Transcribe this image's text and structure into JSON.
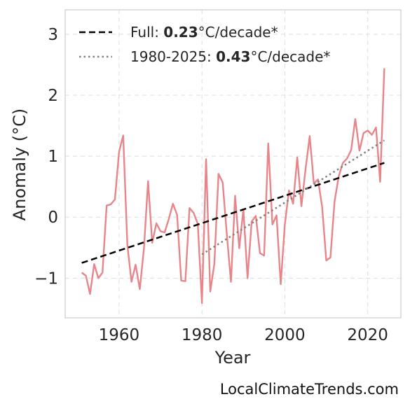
{
  "chart_data": {
    "type": "line",
    "xlabel": "Year",
    "ylabel": "Anomaly (°C)",
    "xlim": [
      1947,
      2028
    ],
    "ylim": [
      -1.65,
      3.4
    ],
    "x_ticks": [
      1960,
      1980,
      2000,
      2020
    ],
    "y_ticks": [
      {
        "value": 3,
        "label": "3"
      },
      {
        "value": 2,
        "label": "2"
      },
      {
        "value": 1,
        "label": "1"
      },
      {
        "value": 0,
        "label": "0"
      },
      {
        "value": -1,
        "label": "−1"
      }
    ],
    "grid": true,
    "legend_position": "top-left",
    "series": [
      {
        "role": "anomaly",
        "color": "#e8858a",
        "x": [
          1951,
          1952,
          1953,
          1954,
          1955,
          1956,
          1957,
          1958,
          1959,
          1960,
          1961,
          1962,
          1963,
          1964,
          1965,
          1966,
          1967,
          1968,
          1969,
          1970,
          1971,
          1972,
          1973,
          1974,
          1975,
          1976,
          1977,
          1978,
          1979,
          1980,
          1981,
          1982,
          1983,
          1984,
          1985,
          1986,
          1987,
          1988,
          1989,
          1990,
          1991,
          1992,
          1993,
          1994,
          1995,
          1996,
          1997,
          1998,
          1999,
          2000,
          2001,
          2002,
          2003,
          2004,
          2005,
          2006,
          2007,
          2008,
          2009,
          2010,
          2011,
          2012,
          2013,
          2014,
          2015,
          2016,
          2017,
          2018,
          2019,
          2020,
          2021,
          2022,
          2023,
          2024
        ],
        "values": [
          -0.91,
          -0.96,
          -1.26,
          -0.77,
          -1.0,
          -0.91,
          0.19,
          0.21,
          0.29,
          1.07,
          1.34,
          -0.45,
          -1.06,
          -0.78,
          -1.18,
          -0.52,
          0.59,
          -0.42,
          -0.1,
          -0.23,
          -0.25,
          -0.03,
          0.22,
          0.04,
          -1.04,
          -1.05,
          0.15,
          0.07,
          -0.11,
          -1.41,
          0.95,
          -1.22,
          -0.76,
          0.71,
          0.57,
          -0.28,
          -1.06,
          0.35,
          -0.51,
          0.13,
          -1.0,
          -0.07,
          0.02,
          -0.59,
          -0.63,
          1.21,
          -0.12,
          0.03,
          -1.1,
          -0.12,
          0.44,
          0.22,
          0.98,
          0.18,
          0.79,
          1.33,
          0.55,
          0.62,
          0.17,
          -0.71,
          -0.66,
          0.26,
          0.67,
          0.89,
          0.96,
          1.1,
          1.61,
          1.09,
          1.38,
          1.42,
          1.35,
          1.47,
          0.58,
          2.44
        ]
      },
      {
        "role": "trend-full",
        "color": "#000000",
        "style": "dashed",
        "x": [
          1951,
          2024
        ],
        "values": [
          -0.75,
          0.89
        ]
      },
      {
        "role": "trend-1980",
        "color": "#808080",
        "style": "dotted",
        "x": [
          1980,
          2024
        ],
        "values": [
          -0.61,
          1.26
        ]
      }
    ],
    "legend": [
      {
        "series": "trend-full",
        "prefix": "Full: ",
        "rate": "0.23",
        "suffix": "°C/decade*"
      },
      {
        "series": "trend-1980",
        "prefix": "1980-2025: ",
        "rate": "0.43",
        "suffix": "°C/decade*"
      }
    ]
  },
  "credit": "LocalClimateTrends.com"
}
